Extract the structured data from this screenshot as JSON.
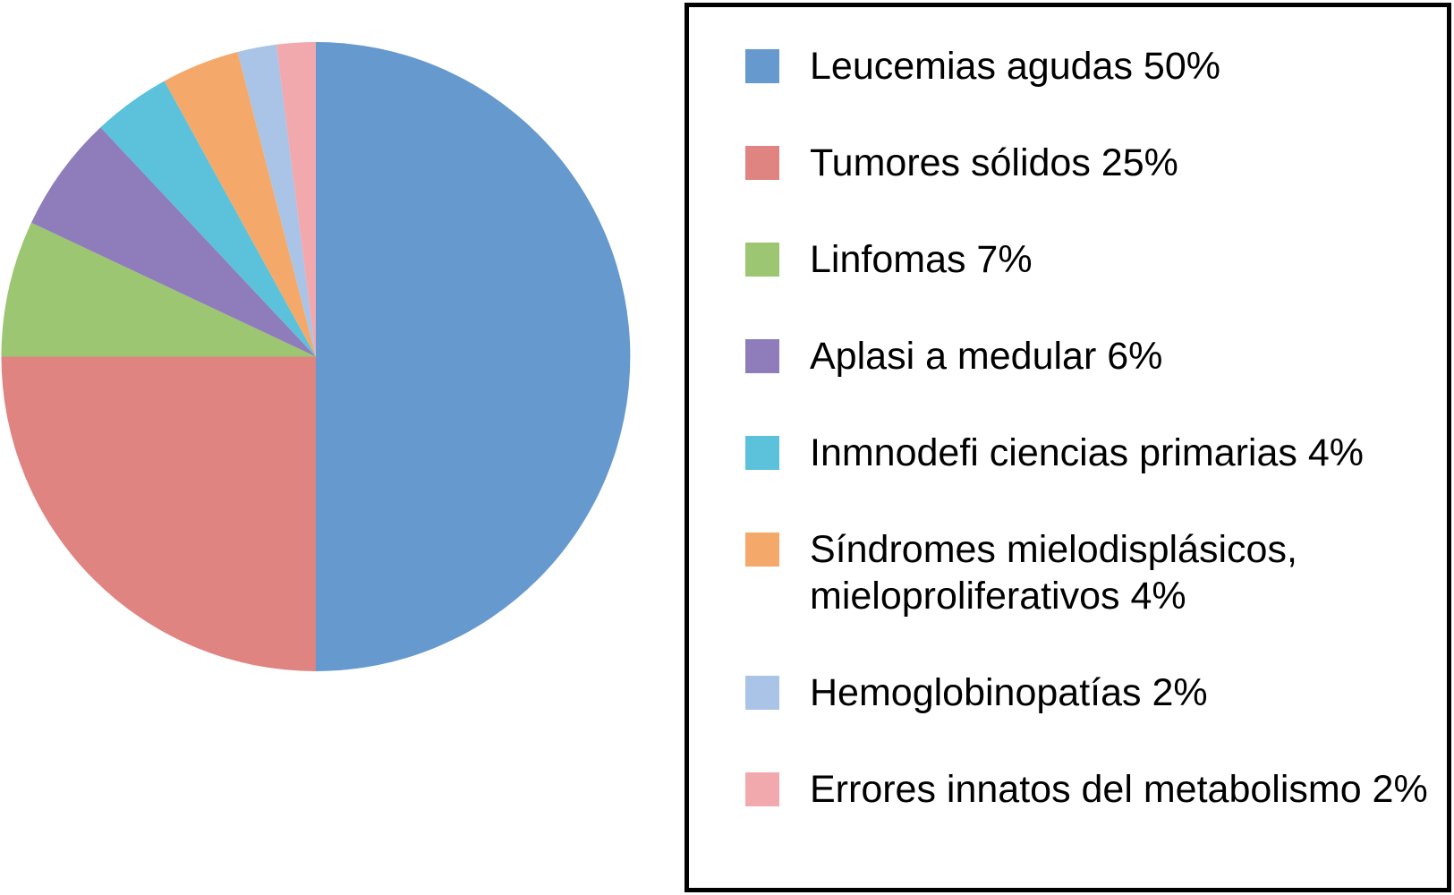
{
  "chart_data": {
    "type": "pie",
    "title": "",
    "direction": "clockwise",
    "start_angle_deg_from_top": 0,
    "unit": "%",
    "categories": [
      "Leucemias agudas",
      "Tumores sólidos",
      "Linfomas",
      "Aplasi a medular",
      "Inmnodefi ciencias primarias",
      "Síndromes mielodisplásicos, mieloproliferativos",
      "Hemoglobinopatías",
      "Errores innatos del metabolismo"
    ],
    "values": [
      50,
      25,
      7,
      6,
      4,
      4,
      2,
      2
    ],
    "colors": [
      "#6699CE",
      "#DF8480",
      "#9CC671",
      "#8F7DBB",
      "#5CC1DB",
      "#F4A96A",
      "#A9C4E7",
      "#F2A9AE"
    ],
    "legend_labels": [
      [
        "Leucemias agudas 50%"
      ],
      [
        "Tumores sólidos 25%"
      ],
      [
        "Linfomas 7%"
      ],
      [
        "Aplasi a medular 6%"
      ],
      [
        "Inmnodefi ciencias primarias 4%"
      ],
      [
        "Síndromes mielodisplásicos,",
        "mieloproliferativos 4%"
      ],
      [
        "Hemoglobinopatías 2%"
      ],
      [
        "Errores innatos del metabolismo 2%"
      ]
    ],
    "legend_position": "right",
    "legend_border_color": "#000000",
    "legend_background": "#FFFFFF",
    "legend_text_color": "#000000",
    "background_color": "#FFFFFF"
  }
}
